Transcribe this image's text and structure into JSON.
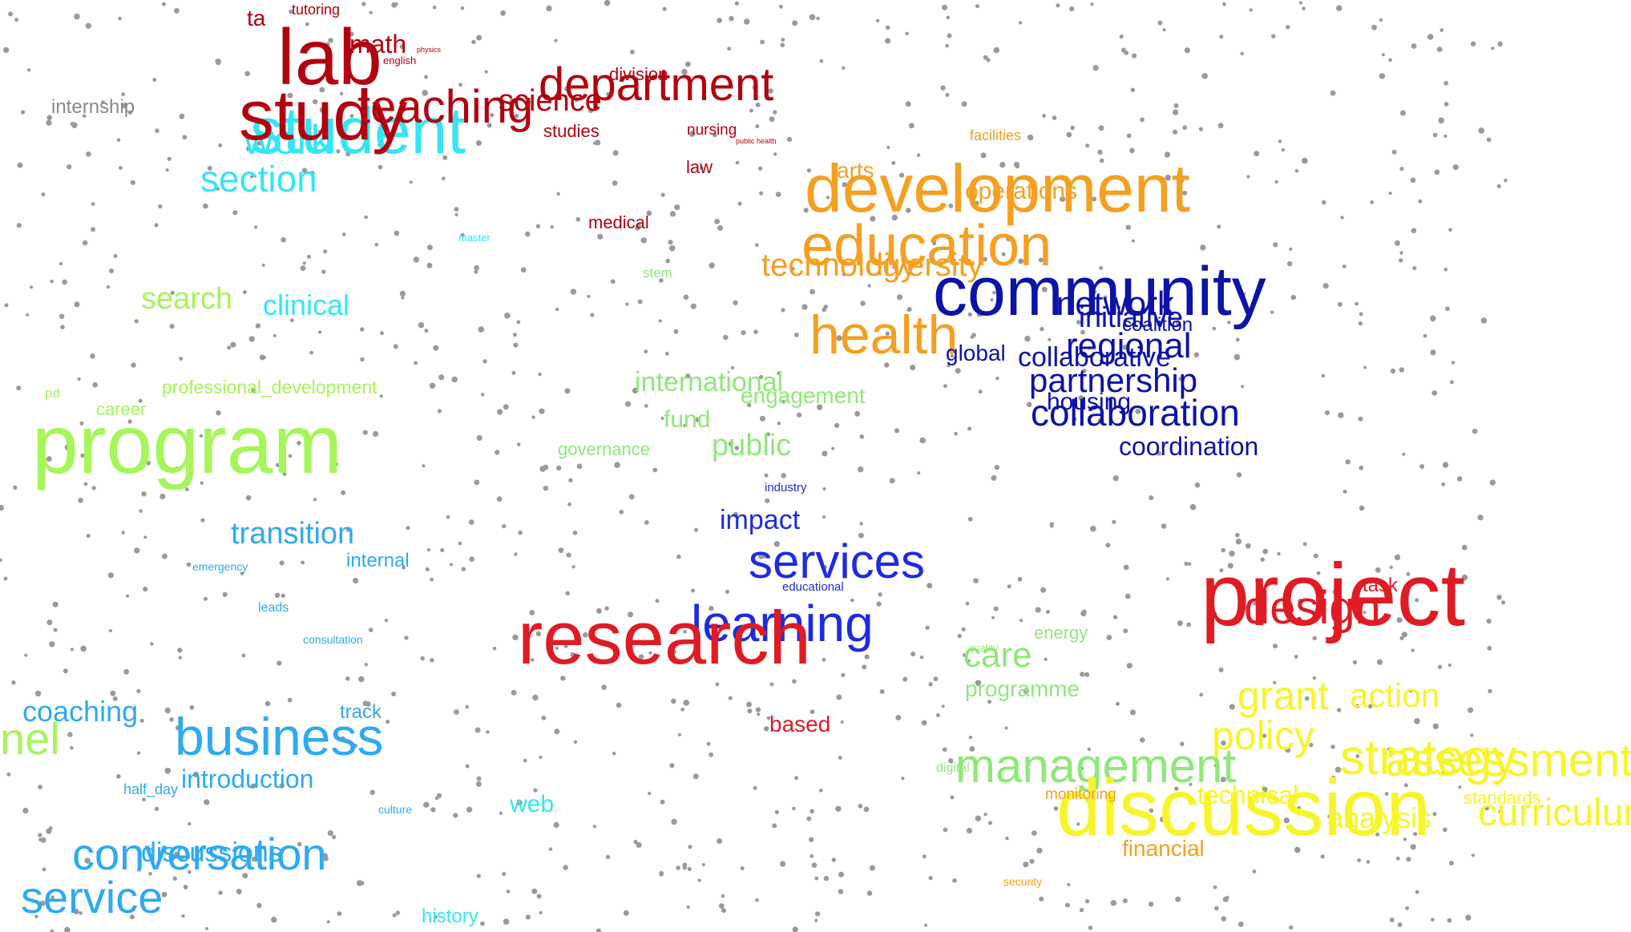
{
  "colors": {
    "red": "#e01b24",
    "darkred": "#b3000f",
    "orange": "#f5a021",
    "yellow": "#f7f52a",
    "lime": "#a6f55a",
    "lightgreen": "#8fe87a",
    "cyan": "#33e6f5",
    "skyblue": "#2eaaf0",
    "blue": "#1e2be0",
    "navy": "#0c13a6",
    "gray": "#888888",
    "dots": "#9a9a9a"
  },
  "words": [
    {
      "text": "ta",
      "color": "darkred"
    },
    {
      "text": "tutoring",
      "color": "darkred"
    },
    {
      "text": "lab",
      "color": "darkred"
    },
    {
      "text": "math",
      "color": "darkred"
    },
    {
      "text": "physics",
      "color": "darkred"
    },
    {
      "text": "english",
      "color": "darkred"
    },
    {
      "text": "student",
      "color": "cyan"
    },
    {
      "text": "work",
      "color": "cyan"
    },
    {
      "text": "study",
      "color": "darkred"
    },
    {
      "text": "teaching",
      "color": "darkred"
    },
    {
      "text": "department",
      "color": "darkred"
    },
    {
      "text": "science",
      "color": "darkred"
    },
    {
      "text": "division",
      "color": "darkred"
    },
    {
      "text": "studies",
      "color": "darkred"
    },
    {
      "text": "nursing",
      "color": "darkred"
    },
    {
      "text": "public health",
      "color": "darkred"
    },
    {
      "text": "law",
      "color": "darkred"
    },
    {
      "text": "medical",
      "color": "darkred"
    },
    {
      "text": "internship",
      "color": "gray"
    },
    {
      "text": "section",
      "color": "cyan"
    },
    {
      "text": "master",
      "color": "cyan"
    },
    {
      "text": "clinical",
      "color": "cyan"
    },
    {
      "text": "search",
      "color": "lime"
    },
    {
      "text": "stem",
      "color": "lightgreen"
    },
    {
      "text": "professional_development",
      "color": "lime"
    },
    {
      "text": "pd",
      "color": "lime"
    },
    {
      "text": "career",
      "color": "lime"
    },
    {
      "text": "program",
      "color": "lime"
    },
    {
      "text": "international",
      "color": "lightgreen"
    },
    {
      "text": "engagement",
      "color": "lightgreen"
    },
    {
      "text": "fund",
      "color": "lightgreen"
    },
    {
      "text": "governance",
      "color": "lightgreen"
    },
    {
      "text": "public",
      "color": "lightgreen"
    },
    {
      "text": "facilities",
      "color": "orange"
    },
    {
      "text": "development",
      "color": "orange"
    },
    {
      "text": "arts",
      "color": "orange"
    },
    {
      "text": "operations",
      "color": "orange"
    },
    {
      "text": "education",
      "color": "orange"
    },
    {
      "text": "technology",
      "color": "orange"
    },
    {
      "text": "diversity",
      "color": "orange"
    },
    {
      "text": "health",
      "color": "orange"
    },
    {
      "text": "community",
      "color": "navy"
    },
    {
      "text": "network",
      "color": "navy"
    },
    {
      "text": "initiative",
      "color": "navy"
    },
    {
      "text": "coalition",
      "color": "navy"
    },
    {
      "text": "regional",
      "color": "navy"
    },
    {
      "text": "global",
      "color": "navy"
    },
    {
      "text": "collaborative",
      "color": "navy"
    },
    {
      "text": "partnership",
      "color": "navy"
    },
    {
      "text": "housing",
      "color": "navy"
    },
    {
      "text": "collaboration",
      "color": "navy"
    },
    {
      "text": "coordination",
      "color": "navy"
    },
    {
      "text": "industry",
      "color": "blue"
    },
    {
      "text": "impact",
      "color": "blue"
    },
    {
      "text": "services",
      "color": "blue"
    },
    {
      "text": "educational",
      "color": "blue"
    },
    {
      "text": "learning",
      "color": "blue"
    },
    {
      "text": "research",
      "color": "red"
    },
    {
      "text": "based",
      "color": "red"
    },
    {
      "text": "project",
      "color": "red"
    },
    {
      "text": "design",
      "color": "red"
    },
    {
      "text": "task",
      "color": "red"
    },
    {
      "text": "transition",
      "color": "skyblue"
    },
    {
      "text": "internal",
      "color": "skyblue"
    },
    {
      "text": "emergency",
      "color": "skyblue"
    },
    {
      "text": "leads",
      "color": "skyblue"
    },
    {
      "text": "consultation",
      "color": "skyblue"
    },
    {
      "text": "coaching",
      "color": "skyblue"
    },
    {
      "text": "track",
      "color": "skyblue"
    },
    {
      "text": "business",
      "color": "skyblue"
    },
    {
      "text": "introduction",
      "color": "skyblue"
    },
    {
      "text": "half_day",
      "color": "skyblue"
    },
    {
      "text": "web",
      "color": "cyan"
    },
    {
      "text": "conversation",
      "color": "skyblue"
    },
    {
      "text": "discussions",
      "color": "skyblue"
    },
    {
      "text": "service",
      "color": "skyblue"
    },
    {
      "text": "history",
      "color": "cyan"
    },
    {
      "text": "culture",
      "color": "skyblue"
    },
    {
      "text": "energy",
      "color": "lightgreen"
    },
    {
      "text": "care",
      "color": "lightgreen"
    },
    {
      "text": "quality",
      "color": "lightgreen"
    },
    {
      "text": "programme",
      "color": "lightgreen"
    },
    {
      "text": "management",
      "color": "lightgreen"
    },
    {
      "text": "digital",
      "color": "lightgreen"
    },
    {
      "text": "grant",
      "color": "yellow"
    },
    {
      "text": "action",
      "color": "yellow"
    },
    {
      "text": "policy",
      "color": "yellow"
    },
    {
      "text": "strategy",
      "color": "yellow"
    },
    {
      "text": "assessment",
      "color": "yellow"
    },
    {
      "text": "discussion",
      "color": "yellow"
    },
    {
      "text": "technical",
      "color": "yellow"
    },
    {
      "text": "standards",
      "color": "yellow"
    },
    {
      "text": "analysis",
      "color": "yellow"
    },
    {
      "text": "curriculum",
      "color": "yellow"
    },
    {
      "text": "monitoring",
      "color": "orange"
    },
    {
      "text": "financial",
      "color": "orange"
    },
    {
      "text": "security",
      "color": "orange"
    },
    {
      "text": "nel",
      "color": "lime"
    }
  ]
}
